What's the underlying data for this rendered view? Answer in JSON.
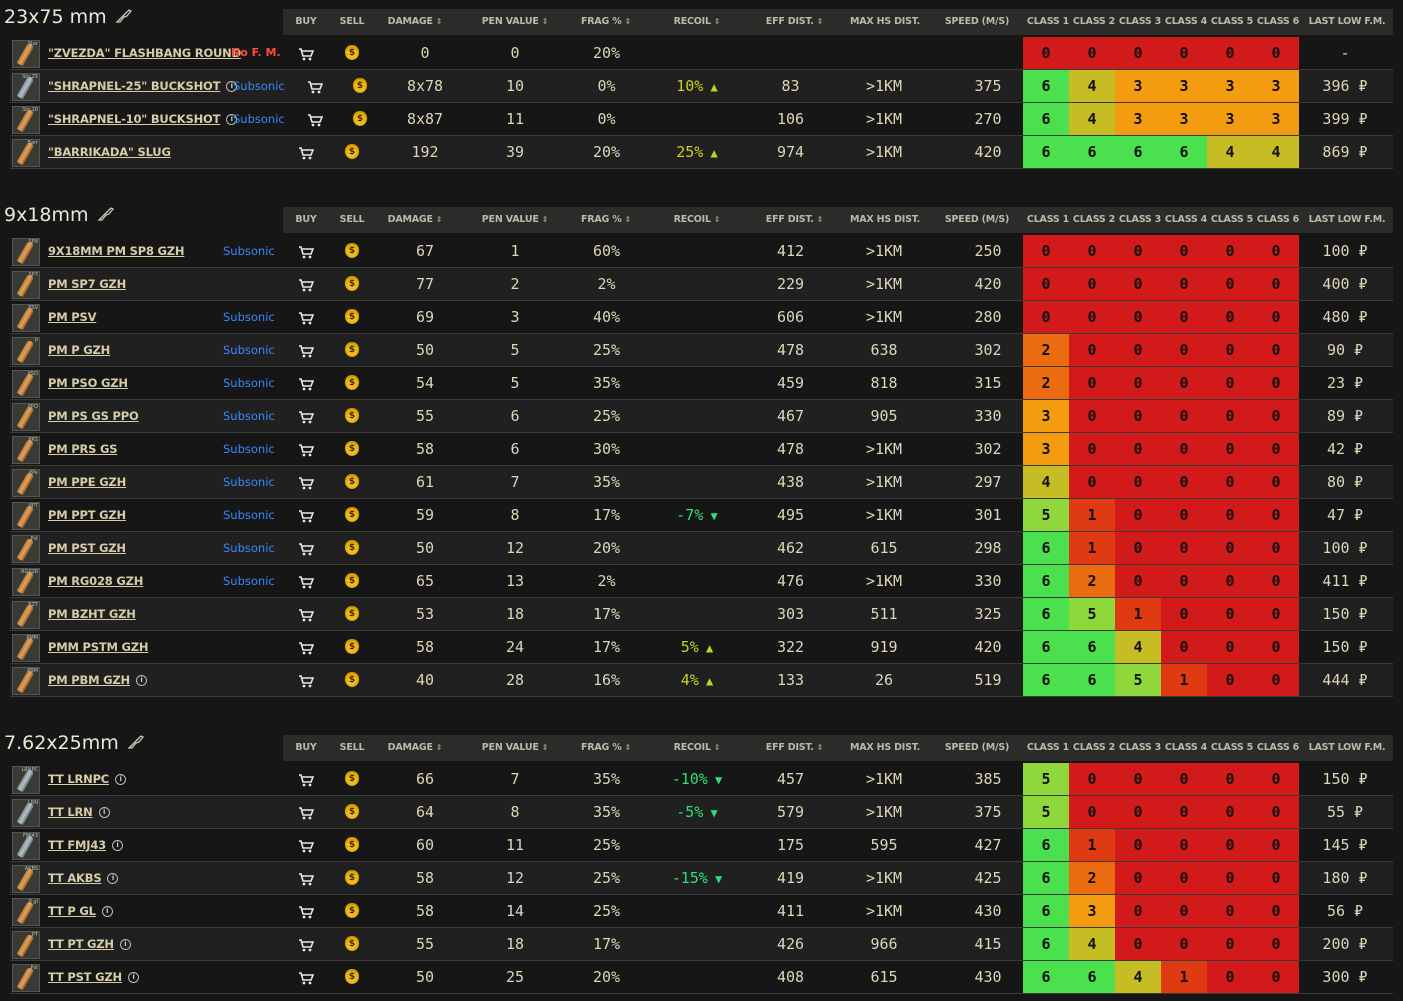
{
  "headers": {
    "buy": "BUY",
    "sell": "SELL",
    "damage": "DAMAGE",
    "pen": "PEN VALUE",
    "frag": "FRAG %",
    "recoil": "RECOIL",
    "eff": "EFF DIST.",
    "maxhs": "MAX HS DIST.",
    "speed": "SPEED (M/S)",
    "c1": "CLASS 1",
    "c2": "CLASS 2",
    "c3": "CLASS 3",
    "c4": "CLASS 4",
    "c5": "CLASS 5",
    "c6": "CLASS 6",
    "price": "LAST LOW F.M."
  },
  "class_colors": {
    "0": "#d21a1a",
    "1": "#e03a12",
    "2": "#eb6c10",
    "3": "#f39c12",
    "4": "#c5bd23",
    "5": "#8ed83c",
    "6": "#4be04d"
  },
  "sections": [
    {
      "title": "23x75 mm",
      "rows": [
        {
          "thumb": "Star",
          "grey": false,
          "name": "\"ZVEZDA\" FLASHBANG ROUND",
          "info": false,
          "tag": "No F. M.",
          "tag_type": "nofm",
          "damage": "0",
          "pen": "0",
          "frag": "20%",
          "recoil": "",
          "recoil_dir": "",
          "eff": "",
          "maxhs": "",
          "speed": "",
          "classes": [
            "0",
            "0",
            "0",
            "0",
            "0",
            "0"
          ],
          "price": "-"
        },
        {
          "thumb": "Shr.25",
          "grey": true,
          "name": "\"SHRAPNEL-25\" BUCKSHOT",
          "info": true,
          "tag": "Subsonic",
          "tag_type": "sub",
          "damage": "8x78",
          "pen": "10",
          "frag": "0%",
          "recoil": "10%",
          "recoil_dir": "up",
          "eff": "83",
          "maxhs": ">1KM",
          "speed": "375",
          "classes": [
            "6",
            "4",
            "3",
            "3",
            "3",
            "3"
          ],
          "price": "396 ₽"
        },
        {
          "thumb": "Shr.10",
          "grey": false,
          "name": "\"SHRAPNEL-10\" BUCKSHOT",
          "info": true,
          "tag": "Subsonic",
          "tag_type": "sub",
          "damage": "8x87",
          "pen": "11",
          "frag": "0%",
          "recoil": "",
          "recoil_dir": "",
          "eff": "106",
          "maxhs": ">1KM",
          "speed": "270",
          "classes": [
            "6",
            "4",
            "3",
            "3",
            "3",
            "3"
          ],
          "price": "399 ₽"
        },
        {
          "thumb": "Barr",
          "grey": false,
          "name": "\"BARRIKADA\" SLUG",
          "info": false,
          "tag": "",
          "tag_type": "",
          "damage": "192",
          "pen": "39",
          "frag": "20%",
          "recoil": "25%",
          "recoil_dir": "up",
          "eff": "974",
          "maxhs": ">1KM",
          "speed": "420",
          "classes": [
            "6",
            "6",
            "6",
            "6",
            "4",
            "4"
          ],
          "price": "869 ₽"
        }
      ]
    },
    {
      "title": "9x18mm",
      "rows": [
        {
          "thumb": "SP8",
          "grey": false,
          "name": "9X18MM PM SP8 GZH",
          "info": false,
          "tag": "Subsonic",
          "tag_type": "sub",
          "damage": "67",
          "pen": "1",
          "frag": "60%",
          "recoil": "",
          "recoil_dir": "",
          "eff": "412",
          "maxhs": ">1KM",
          "speed": "250",
          "classes": [
            "0",
            "0",
            "0",
            "0",
            "0",
            "0"
          ],
          "price": "100 ₽"
        },
        {
          "thumb": "SP7",
          "grey": false,
          "name": "PM SP7 GZH",
          "info": false,
          "tag": "",
          "tag_type": "",
          "damage": "77",
          "pen": "2",
          "frag": "2%",
          "recoil": "",
          "recoil_dir": "",
          "eff": "229",
          "maxhs": ">1KM",
          "speed": "420",
          "classes": [
            "0",
            "0",
            "0",
            "0",
            "0",
            "0"
          ],
          "price": "400 ₽"
        },
        {
          "thumb": "PSV",
          "grey": false,
          "name": "PM PSV",
          "info": false,
          "tag": "Subsonic",
          "tag_type": "sub",
          "damage": "69",
          "pen": "3",
          "frag": "40%",
          "recoil": "",
          "recoil_dir": "",
          "eff": "606",
          "maxhs": ">1KM",
          "speed": "280",
          "classes": [
            "0",
            "0",
            "0",
            "0",
            "0",
            "0"
          ],
          "price": "480 ₽"
        },
        {
          "thumb": "P",
          "grey": false,
          "name": "PM P GZH",
          "info": false,
          "tag": "Subsonic",
          "tag_type": "sub",
          "damage": "50",
          "pen": "5",
          "frag": "25%",
          "recoil": "",
          "recoil_dir": "",
          "eff": "478",
          "maxhs": "638",
          "speed": "302",
          "classes": [
            "2",
            "0",
            "0",
            "0",
            "0",
            "0"
          ],
          "price": "90 ₽"
        },
        {
          "thumb": "PSO",
          "grey": false,
          "name": "PM PSO GZH",
          "info": false,
          "tag": "Subsonic",
          "tag_type": "sub",
          "damage": "54",
          "pen": "5",
          "frag": "35%",
          "recoil": "",
          "recoil_dir": "",
          "eff": "459",
          "maxhs": "818",
          "speed": "315",
          "classes": [
            "2",
            "0",
            "0",
            "0",
            "0",
            "0"
          ],
          "price": "23 ₽"
        },
        {
          "thumb": "PPO",
          "grey": false,
          "name": "PM PS GS PPO",
          "info": false,
          "tag": "Subsonic",
          "tag_type": "sub",
          "damage": "55",
          "pen": "6",
          "frag": "25%",
          "recoil": "",
          "recoil_dir": "",
          "eff": "467",
          "maxhs": "905",
          "speed": "330",
          "classes": [
            "3",
            "0",
            "0",
            "0",
            "0",
            "0"
          ],
          "price": "89 ₽"
        },
        {
          "thumb": "PRS",
          "grey": false,
          "name": "PM PRS GS",
          "info": false,
          "tag": "Subsonic",
          "tag_type": "sub",
          "damage": "58",
          "pen": "6",
          "frag": "30%",
          "recoil": "",
          "recoil_dir": "",
          "eff": "478",
          "maxhs": ">1KM",
          "speed": "302",
          "classes": [
            "3",
            "0",
            "0",
            "0",
            "0",
            "0"
          ],
          "price": "42 ₽"
        },
        {
          "thumb": "PPe",
          "grey": false,
          "name": "PM PPE GZH",
          "info": false,
          "tag": "Subsonic",
          "tag_type": "sub",
          "damage": "61",
          "pen": "7",
          "frag": "35%",
          "recoil": "",
          "recoil_dir": "",
          "eff": "438",
          "maxhs": ">1KM",
          "speed": "297",
          "classes": [
            "4",
            "0",
            "0",
            "0",
            "0",
            "0"
          ],
          "price": "80 ₽"
        },
        {
          "thumb": "PPT",
          "grey": false,
          "name": "PM PPT GZH",
          "info": false,
          "tag": "Subsonic",
          "tag_type": "sub",
          "damage": "59",
          "pen": "8",
          "frag": "17%",
          "recoil": "-7%",
          "recoil_dir": "down",
          "eff": "495",
          "maxhs": ">1KM",
          "speed": "301",
          "classes": [
            "5",
            "1",
            "0",
            "0",
            "0",
            "0"
          ],
          "price": "47 ₽"
        },
        {
          "thumb": "Pst",
          "grey": false,
          "name": "PM PST GZH",
          "info": false,
          "tag": "Subsonic",
          "tag_type": "sub",
          "damage": "50",
          "pen": "12",
          "frag": "20%",
          "recoil": "",
          "recoil_dir": "",
          "eff": "462",
          "maxhs": "615",
          "speed": "298",
          "classes": [
            "6",
            "1",
            "0",
            "0",
            "0",
            "0"
          ],
          "price": "100 ₽"
        },
        {
          "thumb": "RG028",
          "grey": false,
          "name": "PM RG028 GZH",
          "info": false,
          "tag": "Subsonic",
          "tag_type": "sub",
          "damage": "65",
          "pen": "13",
          "frag": "2%",
          "recoil": "",
          "recoil_dir": "",
          "eff": "476",
          "maxhs": ">1KM",
          "speed": "330",
          "classes": [
            "6",
            "2",
            "0",
            "0",
            "0",
            "0"
          ],
          "price": "411 ₽"
        },
        {
          "thumb": "BZT",
          "grey": false,
          "name": "PM BZHT GZH",
          "info": false,
          "tag": "",
          "tag_type": "",
          "damage": "53",
          "pen": "18",
          "frag": "17%",
          "recoil": "",
          "recoil_dir": "",
          "eff": "303",
          "maxhs": "511",
          "speed": "325",
          "classes": [
            "6",
            "5",
            "1",
            "0",
            "0",
            "0"
          ],
          "price": "150 ₽"
        },
        {
          "thumb": "PMM",
          "grey": false,
          "name": "PMM PSTM GZH",
          "info": false,
          "tag": "",
          "tag_type": "",
          "damage": "58",
          "pen": "24",
          "frag": "17%",
          "recoil": "5%",
          "recoil_dir": "up",
          "eff": "322",
          "maxhs": "919",
          "speed": "420",
          "classes": [
            "6",
            "6",
            "4",
            "0",
            "0",
            "0"
          ],
          "price": "150 ₽"
        },
        {
          "thumb": "PBM",
          "grey": false,
          "name": "PM PBM GZH",
          "info": true,
          "tag": "",
          "tag_type": "",
          "damage": "40",
          "pen": "28",
          "frag": "16%",
          "recoil": "4%",
          "recoil_dir": "up",
          "eff": "133",
          "maxhs": "26",
          "speed": "519",
          "classes": [
            "6",
            "6",
            "5",
            "1",
            "0",
            "0"
          ],
          "price": "444 ₽"
        }
      ]
    },
    {
      "title": "7.62x25mm",
      "rows": [
        {
          "thumb": "LRNPC",
          "grey": true,
          "name": "TT LRNPC",
          "info": true,
          "tag": "",
          "tag_type": "",
          "damage": "66",
          "pen": "7",
          "frag": "35%",
          "recoil": "-10%",
          "recoil_dir": "down",
          "eff": "457",
          "maxhs": ">1KM",
          "speed": "385",
          "classes": [
            "5",
            "0",
            "0",
            "0",
            "0",
            "0"
          ],
          "price": "150 ₽"
        },
        {
          "thumb": "LRN",
          "grey": true,
          "name": "TT LRN",
          "info": true,
          "tag": "",
          "tag_type": "",
          "damage": "64",
          "pen": "8",
          "frag": "35%",
          "recoil": "-5%",
          "recoil_dir": "down",
          "eff": "579",
          "maxhs": ">1KM",
          "speed": "375",
          "classes": [
            "5",
            "0",
            "0",
            "0",
            "0",
            "0"
          ],
          "price": "55 ₽"
        },
        {
          "thumb": "FMJ43",
          "grey": true,
          "name": "TT FMJ43",
          "info": true,
          "tag": "",
          "tag_type": "",
          "damage": "60",
          "pen": "11",
          "frag": "25%",
          "recoil": "",
          "recoil_dir": "",
          "eff": "175",
          "maxhs": "595",
          "speed": "427",
          "classes": [
            "6",
            "1",
            "0",
            "0",
            "0",
            "0"
          ],
          "price": "145 ₽"
        },
        {
          "thumb": "AKBS",
          "grey": false,
          "name": "TT AKBS",
          "info": true,
          "tag": "",
          "tag_type": "",
          "damage": "58",
          "pen": "12",
          "frag": "25%",
          "recoil": "-15%",
          "recoil_dir": "down",
          "eff": "419",
          "maxhs": ">1KM",
          "speed": "425",
          "classes": [
            "6",
            "2",
            "0",
            "0",
            "0",
            "0"
          ],
          "price": "180 ₽"
        },
        {
          "thumb": "P gl",
          "grey": false,
          "name": "TT P GL",
          "info": true,
          "tag": "",
          "tag_type": "",
          "damage": "58",
          "pen": "14",
          "frag": "25%",
          "recoil": "",
          "recoil_dir": "",
          "eff": "411",
          "maxhs": ">1KM",
          "speed": "430",
          "classes": [
            "6",
            "3",
            "0",
            "0",
            "0",
            "0"
          ],
          "price": "56 ₽"
        },
        {
          "thumb": "PT",
          "grey": false,
          "name": "TT PT GZH",
          "info": true,
          "tag": "",
          "tag_type": "",
          "damage": "55",
          "pen": "18",
          "frag": "17%",
          "recoil": "",
          "recoil_dir": "",
          "eff": "426",
          "maxhs": "966",
          "speed": "415",
          "classes": [
            "6",
            "4",
            "0",
            "0",
            "0",
            "0"
          ],
          "price": "200 ₽"
        },
        {
          "thumb": "Pst",
          "grey": false,
          "name": "TT PST GZH",
          "info": true,
          "tag": "",
          "tag_type": "",
          "damage": "50",
          "pen": "25",
          "frag": "20%",
          "recoil": "",
          "recoil_dir": "",
          "eff": "408",
          "maxhs": "615",
          "speed": "430",
          "classes": [
            "6",
            "6",
            "4",
            "1",
            "0",
            "0"
          ],
          "price": "300 ₽"
        }
      ]
    }
  ]
}
